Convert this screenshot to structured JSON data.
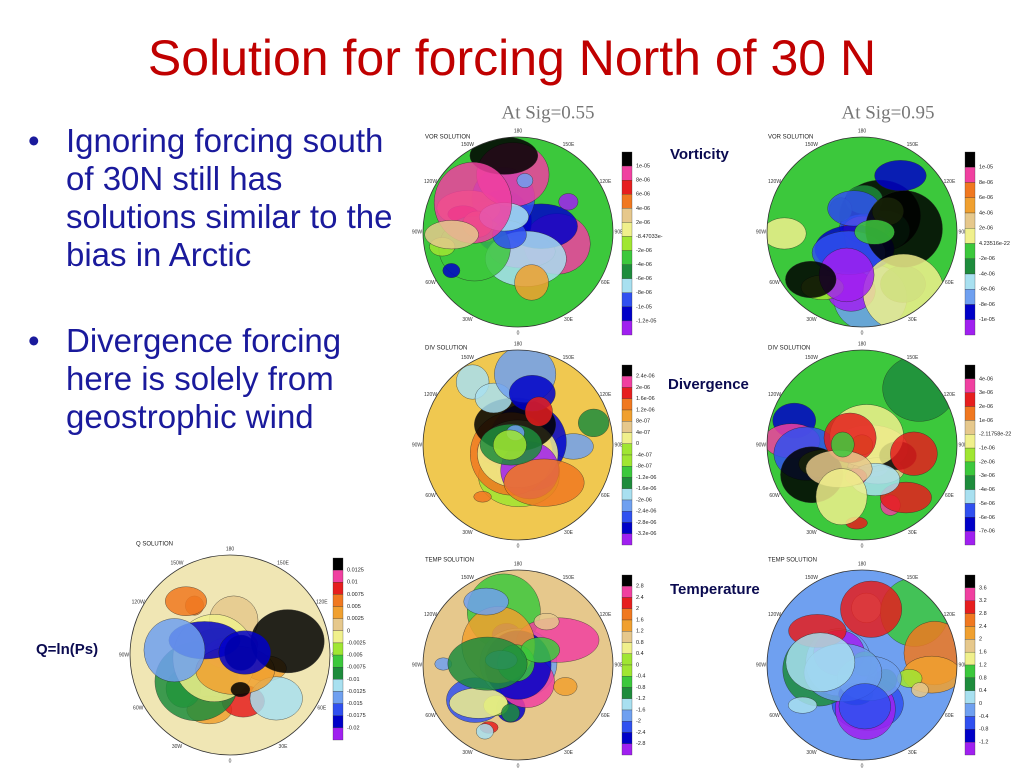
{
  "title": "Solution for forcing North of 30 N",
  "bullets": [
    "Ignoring forcing south of 30N still has solutions similar to the bias in Arctic",
    "Divergence forcing here is solely from geostrophic wind"
  ],
  "sig_labels": [
    "At  Sig=0.55",
    "At  Sig=0.95"
  ],
  "row_labels": [
    "Vorticity",
    "Divergence",
    "Temperature",
    "Q=ln(Ps)"
  ],
  "lon_labels": [
    "150W",
    "180",
    "150E",
    "120W",
    "120E",
    "90W",
    "90E",
    "60W",
    "60E",
    "30W",
    "0",
    "30E"
  ],
  "panels": [
    {
      "header": "VOR SOLUTION",
      "colorbar": [
        "1e-05",
        "8e-06",
        "6e-06",
        "4e-06",
        "2e-06",
        "-8.47033e-",
        "-2e-06",
        "-4e-06",
        "-6e-06",
        "-8e-06",
        "-1e-05",
        "-1.2e-05"
      ]
    },
    {
      "header": "VOR SOLUTION",
      "colorbar": [
        "1e-05",
        "8e-06",
        "6e-06",
        "4e-06",
        "2e-06",
        "4.23516e-22",
        "-2e-06",
        "-4e-06",
        "-6e-06",
        "-8e-06",
        "-1e-05"
      ]
    },
    {
      "header": "DIV SOLUTION",
      "colorbar": [
        "2.4e-06",
        "2e-06",
        "1.6e-06",
        "1.2e-06",
        "8e-07",
        "4e-07",
        "0",
        "-4e-07",
        "-8e-07",
        "-1.2e-06",
        "-1.6e-06",
        "-2e-06",
        "-2.4e-06",
        "-2.8e-06",
        "-3.2e-06"
      ]
    },
    {
      "header": "DIV SOLUTION",
      "colorbar": [
        "4e-06",
        "3e-06",
        "2e-06",
        "1e-06",
        "-2.11758e-22",
        "-1e-06",
        "-2e-06",
        "-3e-06",
        "-4e-06",
        "-5e-06",
        "-6e-06",
        "-7e-06"
      ]
    },
    {
      "header": "TEMP SOLUTION",
      "colorbar": [
        "2.8",
        "2.4",
        "2",
        "1.6",
        "1.2",
        "0.8",
        "0.4",
        "0",
        "-0.4",
        "-0.8",
        "-1.2",
        "-1.6",
        "-2",
        "-2.4",
        "-2.8"
      ]
    },
    {
      "header": "TEMP SOLUTION",
      "colorbar": [
        "3.6",
        "3.2",
        "2.8",
        "2.4",
        "2",
        "1.6",
        "1.2",
        "0.8",
        "0.4",
        "0",
        "-0.4",
        "-0.8",
        "-1.2"
      ]
    },
    {
      "header": "Q SOLUTION",
      "colorbar": [
        "0.0125",
        "0.01",
        "0.0075",
        "0.005",
        "0.0025",
        "0",
        "-0.0025",
        "-0.005",
        "-0.0075",
        "-0.01",
        "-0.0125",
        "-0.015",
        "-0.0175",
        "-0.02"
      ]
    }
  ]
}
